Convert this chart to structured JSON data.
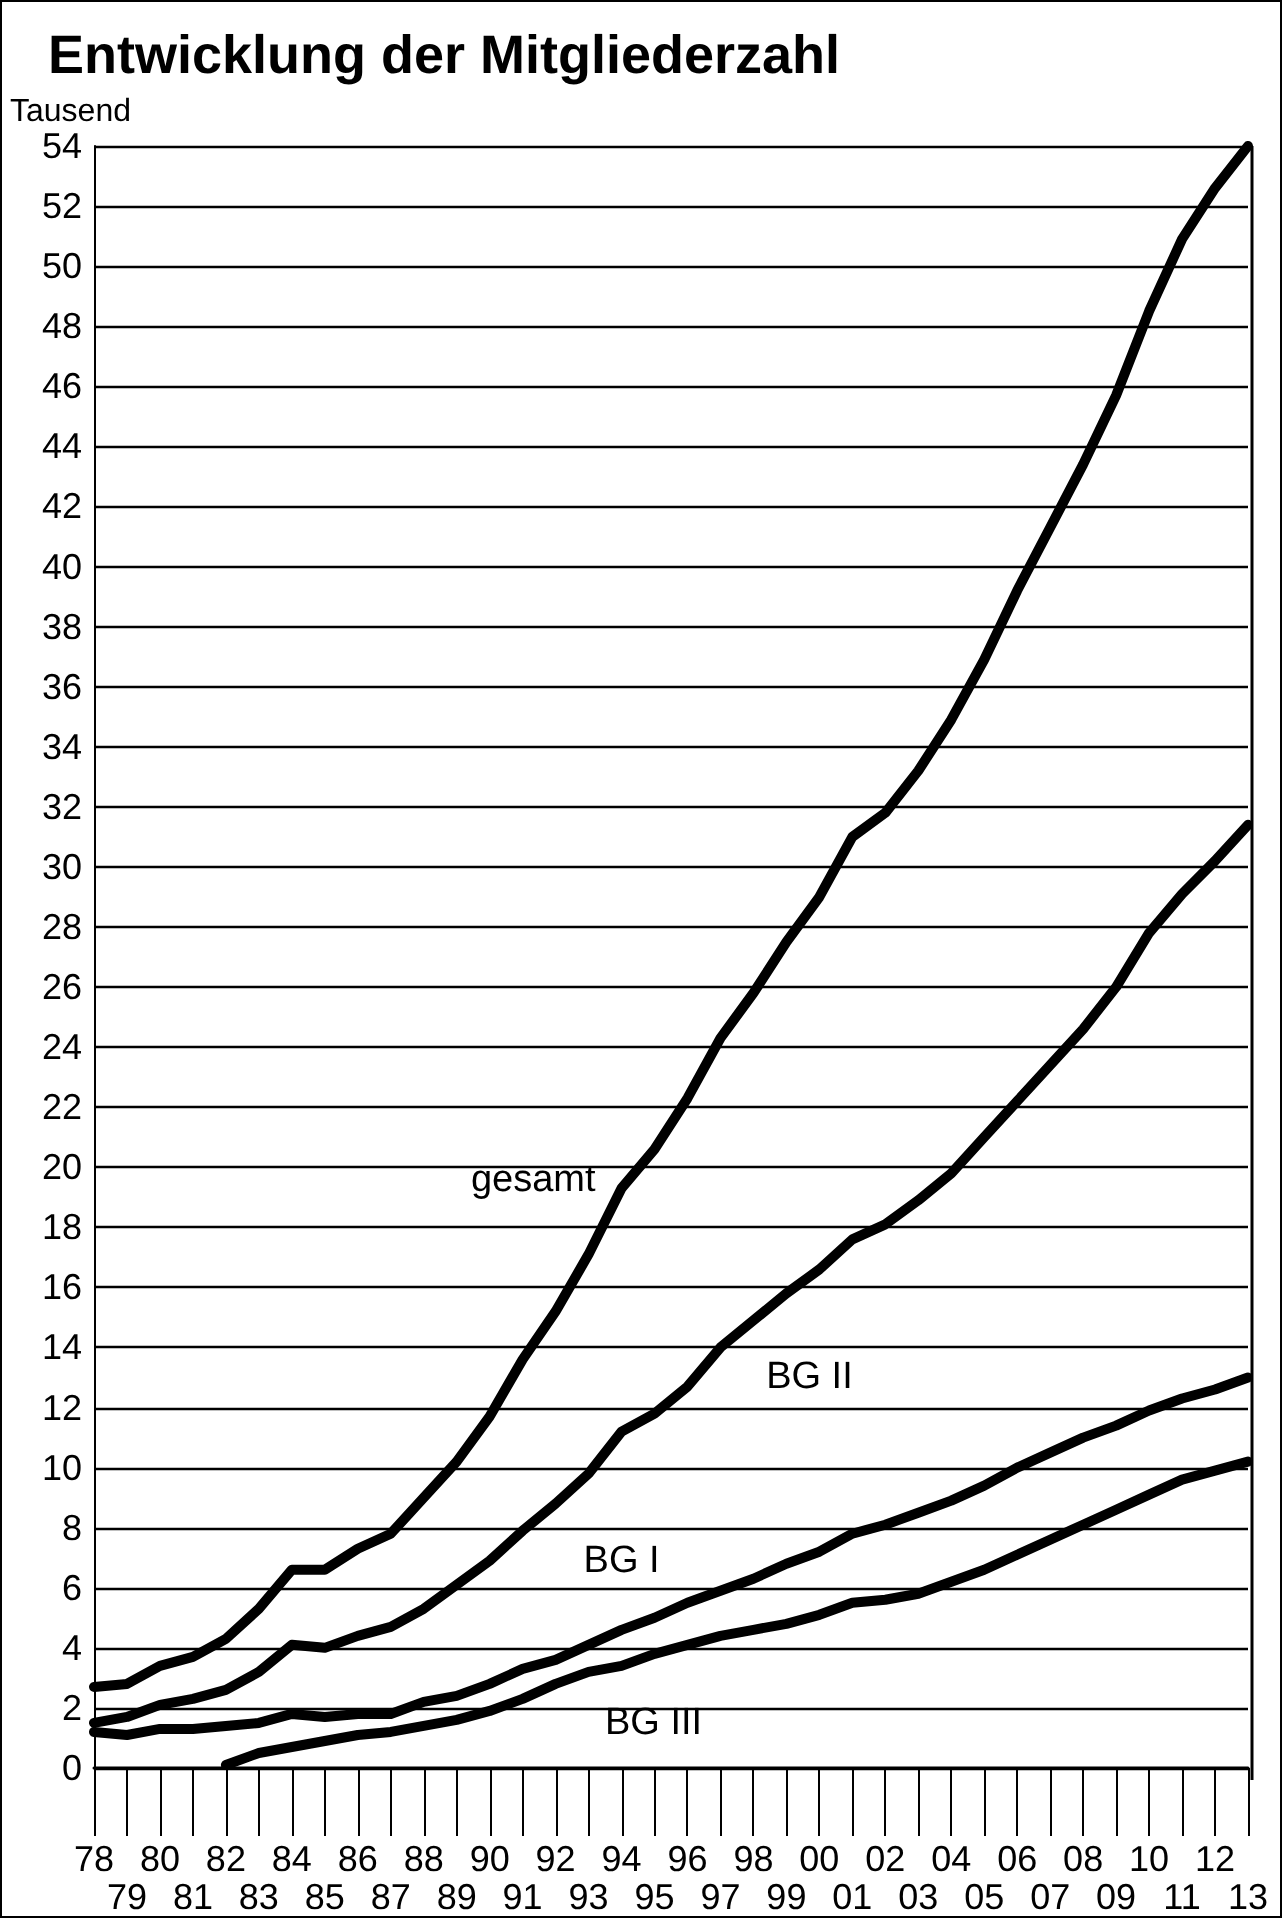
{
  "chart_data": {
    "type": "line",
    "title": "Entwicklung der Mitgliederzahl",
    "ylabel": "Tausend",
    "categories": [
      "78",
      "79",
      "80",
      "81",
      "82",
      "83",
      "84",
      "85",
      "86",
      "87",
      "88",
      "89",
      "90",
      "91",
      "92",
      "93",
      "94",
      "95",
      "96",
      "97",
      "98",
      "99",
      "00",
      "01",
      "02",
      "03",
      "04",
      "05",
      "06",
      "07",
      "08",
      "09",
      "10",
      "11",
      "12",
      "13"
    ],
    "series": [
      {
        "name": "gesamt",
        "color": "#000000",
        "values": [
          2.7,
          2.8,
          3.4,
          3.7,
          4.3,
          5.3,
          6.6,
          6.6,
          7.3,
          7.8,
          9.0,
          10.2,
          11.7,
          13.6,
          15.2,
          17.1,
          19.3,
          20.6,
          22.3,
          24.3,
          25.8,
          27.5,
          29.0,
          31.0,
          31.8,
          33.2,
          34.9,
          36.9,
          39.2,
          41.3,
          43.4,
          45.7,
          48.5,
          50.9,
          52.6,
          54.0
        ]
      },
      {
        "name": "BG II",
        "color": "#000000",
        "values": [
          1.5,
          1.7,
          2.1,
          2.3,
          2.6,
          3.2,
          4.1,
          4.0,
          4.4,
          4.7,
          5.3,
          6.1,
          6.9,
          7.9,
          8.8,
          9.8,
          11.2,
          11.8,
          12.7,
          14.0,
          14.9,
          15.8,
          16.6,
          17.6,
          18.1,
          18.9,
          19.8,
          21.0,
          22.2,
          23.4,
          24.6,
          26.0,
          27.8,
          29.1,
          30.2,
          31.4
        ]
      },
      {
        "name": "BG I",
        "color": "#000000",
        "values": [
          1.2,
          1.1,
          1.3,
          1.3,
          1.4,
          1.5,
          1.8,
          1.7,
          1.8,
          1.8,
          2.2,
          2.4,
          2.8,
          3.3,
          3.6,
          4.1,
          4.6,
          5.0,
          5.5,
          5.9,
          6.3,
          6.8,
          7.2,
          7.8,
          8.1,
          8.5,
          8.9,
          9.4,
          10.0,
          10.5,
          11.0,
          11.4,
          11.9,
          12.3,
          12.6,
          13.0
        ]
      },
      {
        "name": "BG III",
        "color": "#000000",
        "values": [
          null,
          null,
          null,
          null,
          0.1,
          0.5,
          0.7,
          0.9,
          1.1,
          1.2,
          1.4,
          1.6,
          1.9,
          2.3,
          2.8,
          3.2,
          3.4,
          3.8,
          4.1,
          4.4,
          4.6,
          4.8,
          5.1,
          5.5,
          5.6,
          5.8,
          6.2,
          6.6,
          7.1,
          7.6,
          8.1,
          8.6,
          9.1,
          9.6,
          9.9,
          10.2
        ]
      }
    ],
    "ylim": [
      0,
      54
    ],
    "yticks": [
      0,
      2,
      4,
      6,
      8,
      10,
      12,
      14,
      16,
      18,
      20,
      22,
      24,
      26,
      28,
      30,
      32,
      34,
      36,
      38,
      40,
      42,
      44,
      46,
      48,
      50,
      52,
      54
    ],
    "grid": "y",
    "legend": false,
    "marker": "none",
    "line_style": "solid"
  }
}
